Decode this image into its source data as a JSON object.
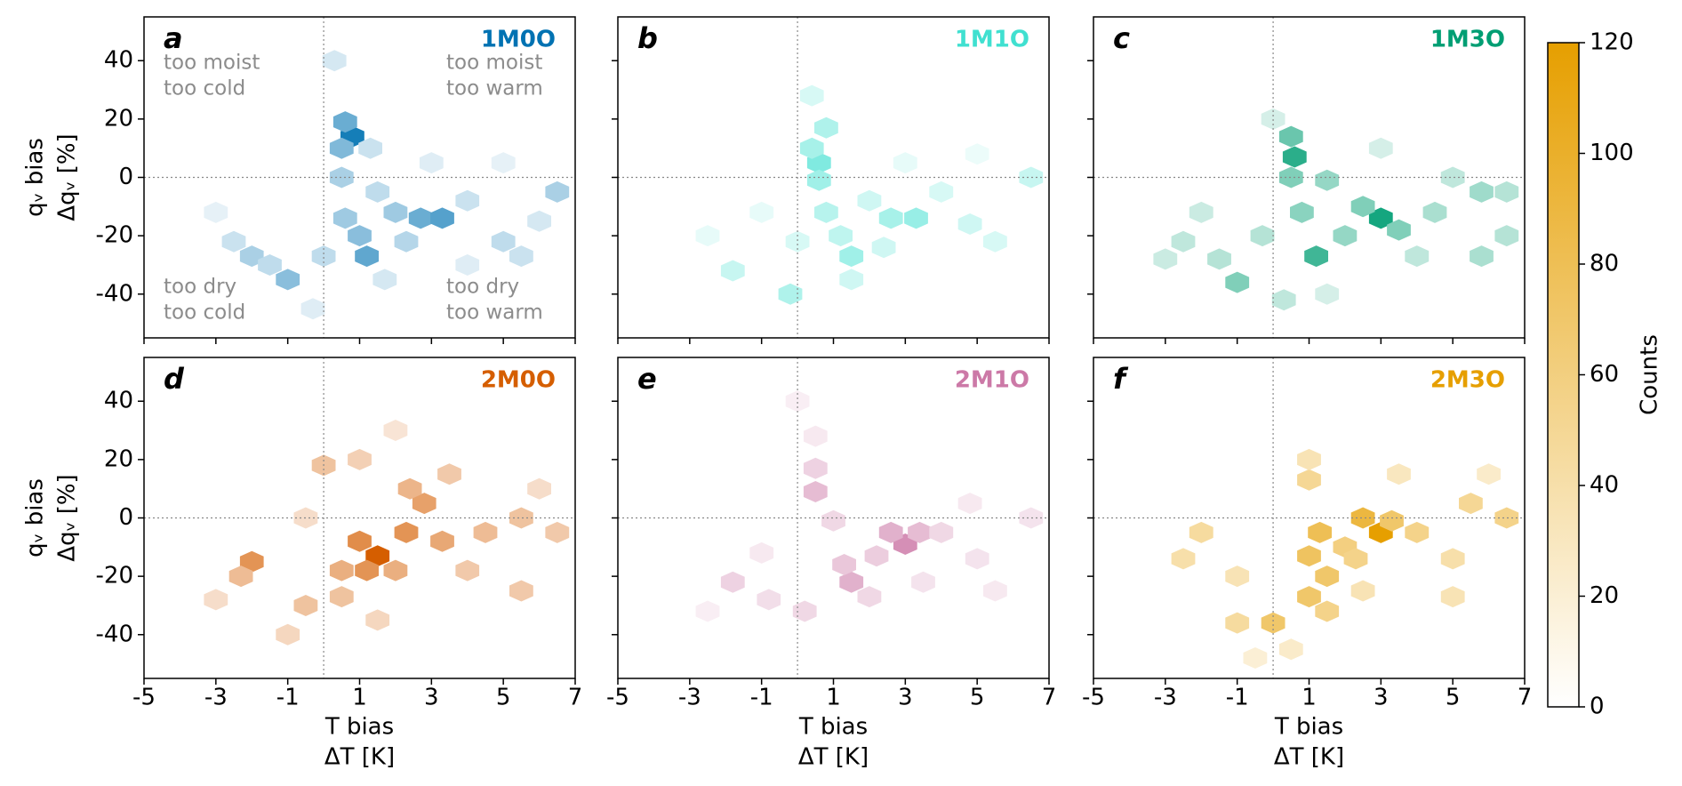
{
  "chart_data": [
    {
      "type": "hexbin",
      "label": "a",
      "title": "1M0O",
      "color": "#0072b2",
      "xlim": [
        -5,
        7
      ],
      "ylim": [
        -55,
        55
      ],
      "xticks": [
        -5,
        -3,
        -1,
        1,
        3,
        5,
        7
      ],
      "yticks": [
        -40,
        -20,
        0,
        20,
        40
      ],
      "ref_x": 0,
      "ref_y": 0,
      "ylabel": [
        "qᵥ bias",
        "Δqᵥ [%]"
      ],
      "annotations": [
        {
          "corner": "top-left",
          "text": [
            "too moist",
            "too cold"
          ]
        },
        {
          "corner": "top-right",
          "text": [
            "too moist",
            "too warm"
          ]
        },
        {
          "corner": "bottom-left",
          "text": [
            "too dry",
            "too cold"
          ]
        },
        {
          "corner": "bottom-right",
          "text": [
            "too dry",
            "too warm"
          ]
        }
      ],
      "x": [
        0.8,
        0.6,
        0.5,
        0.5,
        2.7,
        3.3,
        2,
        1.2,
        1,
        0.6,
        -1,
        -2,
        -2.5,
        0,
        1.5,
        4,
        5,
        6.5,
        5.5,
        0.3,
        1.3,
        2.3,
        -1.5,
        3,
        -3,
        5,
        -0.3,
        1.7,
        4,
        6
      ],
      "y": [
        14,
        19,
        10,
        0,
        -14,
        -14,
        -12,
        -27,
        -20,
        -14,
        -35,
        -27,
        -22,
        -27,
        -5,
        -8,
        -22,
        -5,
        -27,
        40,
        10,
        -22,
        -30,
        5,
        -12,
        5,
        -45,
        -35,
        -30,
        -15
      ],
      "counts": [
        110,
        70,
        60,
        40,
        70,
        80,
        45,
        75,
        55,
        45,
        55,
        40,
        25,
        30,
        30,
        25,
        30,
        40,
        25,
        20,
        25,
        35,
        30,
        15,
        12,
        12,
        15,
        20,
        15,
        20
      ]
    },
    {
      "type": "hexbin",
      "label": "b",
      "title": "1M1O",
      "color": "#40e0d0",
      "xlim": [
        -5,
        7
      ],
      "ylim": [
        -55,
        55
      ],
      "xticks": [
        -5,
        -3,
        -1,
        1,
        3,
        5,
        7
      ],
      "yticks": [
        -40,
        -20,
        0,
        20,
        40
      ],
      "ref_x": 0,
      "ref_y": 0,
      "x": [
        0.6,
        0.4,
        0.8,
        0.6,
        3.3,
        2.6,
        1.5,
        1.2,
        0.8,
        -0.2,
        -1.8,
        2,
        4,
        5.5,
        6.5,
        4.8,
        0,
        -2.5,
        1.5,
        3,
        5,
        0.4,
        -1,
        2.4
      ],
      "y": [
        5,
        10,
        17,
        -1,
        -14,
        -14,
        -27,
        -20,
        -12,
        -40,
        -32,
        -8,
        -5,
        -22,
        0,
        -16,
        -22,
        -20,
        -35,
        5,
        8,
        28,
        -12,
        -24
      ],
      "counts": [
        80,
        55,
        50,
        60,
        65,
        55,
        60,
        40,
        45,
        50,
        35,
        30,
        25,
        25,
        35,
        30,
        25,
        15,
        30,
        15,
        12,
        25,
        15,
        30
      ]
    },
    {
      "type": "hexbin",
      "label": "c",
      "title": "1M3O",
      "color": "#009e73",
      "xlim": [
        -5,
        7
      ],
      "ylim": [
        -55,
        55
      ],
      "xticks": [
        -5,
        -3,
        -1,
        1,
        3,
        5,
        7
      ],
      "yticks": [
        -40,
        -20,
        0,
        20,
        40
      ],
      "ref_x": 0,
      "ref_y": 0,
      "x": [
        0.6,
        0.5,
        0.5,
        1.5,
        3,
        2.5,
        3.5,
        1.2,
        0.8,
        2,
        -1,
        -1.5,
        -2.5,
        5.8,
        6.5,
        4.5,
        5.8,
        4,
        6.5,
        -0.3,
        0.3,
        -3,
        0,
        3,
        5,
        -2,
        1.5
      ],
      "y": [
        7,
        14,
        0,
        -1,
        -14,
        -10,
        -18,
        -27,
        -12,
        -20,
        -36,
        -28,
        -22,
        -5,
        -5,
        -12,
        -27,
        -27,
        -20,
        -20,
        -42,
        -28,
        20,
        10,
        0,
        -12,
        -40
      ],
      "counts": [
        100,
        70,
        60,
        50,
        110,
        60,
        60,
        90,
        55,
        50,
        60,
        35,
        30,
        45,
        35,
        40,
        40,
        30,
        35,
        35,
        30,
        25,
        20,
        20,
        30,
        25,
        20
      ]
    },
    {
      "type": "hexbin",
      "label": "d",
      "title": "2M0O",
      "color": "#d55e00",
      "xlim": [
        -5,
        7
      ],
      "ylim": [
        -55,
        55
      ],
      "xticks": [
        -5,
        -3,
        -1,
        1,
        3,
        5,
        7
      ],
      "yticks": [
        -40,
        -20,
        0,
        20,
        40
      ],
      "ref_x": 0,
      "ref_y": 0,
      "xlabel": [
        "T bias",
        "ΔT [K]"
      ],
      "ylabel": [
        "qᵥ bias",
        "Δqᵥ [%]"
      ],
      "x": [
        1.5,
        1,
        1.2,
        0.5,
        2.3,
        2.8,
        2.4,
        2,
        3.3,
        -2,
        -2.3,
        -0.5,
        0.5,
        4.5,
        5.5,
        6.5,
        4,
        5.5,
        0,
        1,
        3.5,
        -1,
        -3,
        6,
        1.5,
        -0.5,
        2
      ],
      "y": [
        -13,
        -8,
        -18,
        -18,
        -5,
        5,
        10,
        -18,
        -8,
        -15,
        -20,
        -30,
        -27,
        -5,
        0,
        -5,
        -18,
        -25,
        18,
        20,
        15,
        -40,
        -28,
        10,
        -35,
        0,
        30
      ],
      "counts": [
        120,
        85,
        80,
        60,
        80,
        70,
        55,
        60,
        65,
        80,
        50,
        45,
        45,
        50,
        45,
        40,
        40,
        40,
        45,
        35,
        40,
        30,
        25,
        25,
        30,
        25,
        20
      ]
    },
    {
      "type": "hexbin",
      "label": "e",
      "title": "2M1O",
      "color": "#cc79a7",
      "xlim": [
        -5,
        7
      ],
      "ylim": [
        -55,
        55
      ],
      "xticks": [
        -5,
        -3,
        -1,
        1,
        3,
        5,
        7
      ],
      "yticks": [
        -40,
        -20,
        0,
        20,
        40
      ],
      "ref_x": 0,
      "ref_y": 0,
      "xlabel": [
        "T bias",
        "ΔT [K]"
      ],
      "x": [
        3,
        2.6,
        3.4,
        1.5,
        1.3,
        0.5,
        0.5,
        2.2,
        4,
        -1.8,
        -0.8,
        0.2,
        2,
        5,
        6.5,
        4.8,
        1,
        0.5,
        -1,
        3.5,
        5.5,
        -2.5,
        0
      ],
      "y": [
        -9,
        -5,
        -5,
        -22,
        -16,
        9,
        17,
        -13,
        -5,
        -22,
        -28,
        -32,
        -27,
        -14,
        0,
        5,
        -1,
        28,
        -12,
        -22,
        -25,
        -32,
        40
      ],
      "counts": [
        100,
        70,
        60,
        70,
        50,
        60,
        40,
        45,
        35,
        40,
        30,
        35,
        35,
        25,
        25,
        20,
        35,
        20,
        20,
        25,
        20,
        15,
        15
      ]
    },
    {
      "type": "hexbin",
      "label": "f",
      "title": "2M3O",
      "color": "#e69f00",
      "xlim": [
        -5,
        7
      ],
      "ylim": [
        -55,
        55
      ],
      "xticks": [
        -5,
        -3,
        -1,
        1,
        3,
        5,
        7
      ],
      "yticks": [
        -40,
        -20,
        0,
        20,
        40
      ],
      "ref_x": 0,
      "ref_y": 0,
      "xlabel": [
        "T bias",
        "ΔT [K]"
      ],
      "x": [
        3,
        2.5,
        3.3,
        1.3,
        1,
        1.5,
        1,
        1.5,
        0,
        -1,
        2,
        2.3,
        4,
        5.5,
        6.5,
        5,
        5,
        -2,
        -2.5,
        1,
        1,
        3.5,
        -1,
        0.5,
        -0.5,
        6,
        2.5
      ],
      "y": [
        -5,
        0,
        -1,
        -5,
        -13,
        -20,
        -27,
        -32,
        -36,
        -36,
        -10,
        -14,
        -5,
        5,
        0,
        -14,
        -27,
        -5,
        -14,
        13,
        20,
        15,
        -20,
        -45,
        -48,
        15,
        -25
      ],
      "counts": [
        120,
        90,
        70,
        80,
        75,
        70,
        70,
        55,
        70,
        45,
        60,
        55,
        55,
        50,
        55,
        40,
        35,
        45,
        40,
        50,
        35,
        30,
        35,
        25,
        20,
        25,
        35
      ]
    },
    {
      "type": "colorbar",
      "label": "Counts",
      "color": "#e69f00",
      "lim": [
        0,
        120
      ],
      "ticks": [
        0,
        20,
        40,
        60,
        80,
        100,
        120
      ]
    }
  ]
}
